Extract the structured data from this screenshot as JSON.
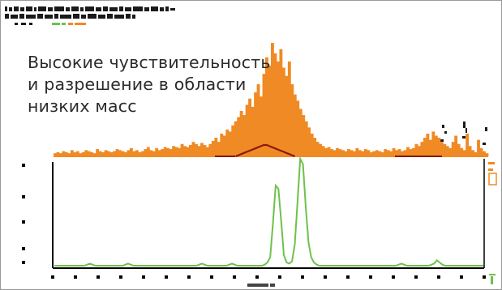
{
  "overlay": {
    "line1": "Высокие чувствительность",
    "line2": "и разрешение в области",
    "line3": "низких масс"
  },
  "colors": {
    "orange": "#f08a24",
    "dark_red": "#8b1a10",
    "green": "#6ec14a",
    "axis": "#000000",
    "text": "#2b2b2b",
    "frame": "#9a9a9a"
  },
  "chart_data": [
    {
      "type": "area",
      "title": "",
      "series": [
        {
          "values": [
            3,
            4,
            3,
            5,
            4,
            3,
            6,
            4,
            5,
            3,
            4,
            6,
            5,
            4,
            3,
            7,
            5,
            4,
            6,
            5,
            4,
            5,
            7,
            6,
            5,
            4,
            6,
            8,
            5,
            6,
            4,
            5,
            7,
            9,
            6,
            5,
            8,
            6,
            7,
            9,
            8,
            7,
            10,
            9,
            8,
            12,
            10,
            9,
            11,
            14,
            12,
            10,
            13,
            11,
            9,
            12,
            15,
            18,
            14,
            22,
            20,
            26,
            24,
            30,
            34,
            38,
            44,
            40,
            50,
            56,
            48,
            62,
            70,
            58,
            80,
            96,
            88,
            110,
            100,
            92,
            104,
            86,
            78,
            92,
            70,
            60,
            54,
            46,
            40,
            34,
            28,
            22,
            18,
            14,
            12,
            10,
            8,
            9,
            7,
            6,
            8,
            7,
            6,
            5,
            7,
            6,
            5,
            8,
            6,
            5,
            7,
            6,
            4,
            5,
            6,
            5,
            4,
            7,
            6,
            5,
            8,
            6,
            7,
            5,
            6,
            9,
            7,
            8,
            12,
            10,
            14,
            18,
            22,
            16,
            24,
            20,
            18,
            14,
            12,
            10,
            8,
            14,
            20,
            12,
            8,
            6,
            22,
            10,
            6,
            4,
            16,
            8,
            5,
            3
          ]
        },
        {
          "values": [
            0,
            0,
            0,
            0,
            0,
            0,
            0,
            0,
            0,
            0,
            0,
            0,
            0,
            0,
            0,
            0,
            0,
            0,
            0,
            0,
            0,
            0,
            0,
            0,
            0,
            0,
            0,
            0,
            0,
            0,
            0,
            0,
            0,
            0,
            0,
            0,
            0,
            0,
            0,
            0,
            0,
            0,
            0,
            0,
            0,
            0,
            0,
            0,
            0,
            0,
            0,
            0,
            0,
            0,
            0,
            0,
            0,
            0,
            0,
            0,
            0,
            0,
            0,
            0,
            0,
            1,
            2,
            3,
            4,
            5,
            6,
            7,
            8,
            9,
            10,
            10,
            9,
            8,
            7,
            6,
            5,
            4,
            3,
            2,
            1,
            0,
            0,
            0,
            0,
            0,
            0,
            0,
            0,
            0,
            0,
            0,
            0,
            0,
            0,
            0,
            0,
            0,
            0,
            0,
            0,
            0,
            0,
            0,
            0,
            0,
            0,
            0,
            0,
            0,
            0,
            0,
            0,
            0,
            0,
            0,
            0,
            0,
            0,
            0,
            0,
            0,
            0,
            0,
            0,
            0,
            0,
            0,
            0,
            0,
            0,
            0,
            0,
            0,
            0,
            0,
            0,
            0,
            0,
            0,
            0,
            0,
            0,
            0,
            0,
            0,
            0,
            0,
            0,
            0
          ]
        }
      ]
    },
    {
      "type": "line",
      "title": "",
      "series": [
        {
          "values": [
            0,
            0,
            0,
            0,
            0,
            0,
            0,
            0,
            0,
            0,
            0,
            0,
            1,
            2,
            1,
            0,
            0,
            0,
            0,
            0,
            0,
            0,
            0,
            0,
            0,
            0,
            1,
            2,
            1,
            0,
            0,
            0,
            0,
            0,
            0,
            0,
            0,
            0,
            0,
            0,
            0,
            0,
            0,
            0,
            0,
            0,
            0,
            0,
            0,
            0,
            0,
            0,
            0,
            1,
            2,
            1,
            0,
            0,
            0,
            0,
            0,
            0,
            0,
            0,
            1,
            2,
            1,
            0,
            0,
            0,
            0,
            0,
            0,
            0,
            0,
            0,
            0,
            1,
            3,
            8,
            40,
            75,
            72,
            42,
            10,
            3,
            2,
            4,
            20,
            60,
            100,
            95,
            55,
            22,
            8,
            3,
            1,
            0,
            0,
            0,
            0,
            0,
            0,
            0,
            0,
            0,
            0,
            0,
            0,
            0,
            0,
            0,
            0,
            0,
            0,
            0,
            0,
            0,
            0,
            0,
            0,
            0,
            0,
            0,
            0,
            0,
            1,
            2,
            1,
            0,
            0,
            0,
            0,
            0,
            0,
            0,
            0,
            0,
            1,
            2,
            5,
            3,
            1,
            0,
            0,
            0,
            0,
            0,
            0,
            0,
            0,
            0,
            0,
            0,
            0,
            0,
            0,
            0
          ]
        }
      ]
    }
  ]
}
